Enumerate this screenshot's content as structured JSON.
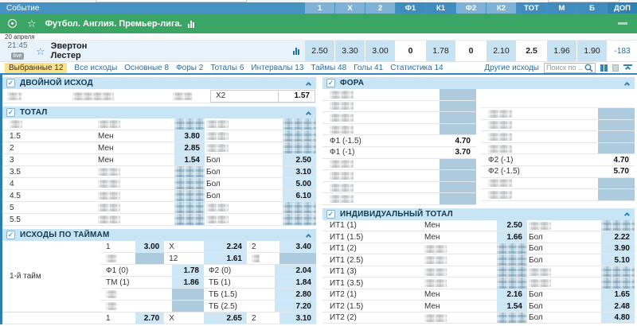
{
  "colors": {
    "header_blue": "#4592c3",
    "league_green": "#3aa565",
    "odds_cell_blue": "#cde7f6",
    "selected_tab_yellow": "#fbe189",
    "link_blue": "#1f6fa8"
  },
  "header": {
    "event_label": "Событие",
    "columns": [
      {
        "label": "1",
        "tone": "light"
      },
      {
        "label": "X",
        "tone": "light"
      },
      {
        "label": "2",
        "tone": "light"
      },
      {
        "label": "Ф1",
        "tone": "dark"
      },
      {
        "label": "К1",
        "tone": "dark"
      },
      {
        "label": "Ф2",
        "tone": "light"
      },
      {
        "label": "К2",
        "tone": "light"
      },
      {
        "label": "ТОТ",
        "tone": "dark"
      },
      {
        "label": "М",
        "tone": "dark"
      },
      {
        "label": "Б",
        "tone": "dark"
      },
      {
        "label": "ДОП",
        "tone": "darker"
      }
    ]
  },
  "league": {
    "title": "Футбол. Англия. Премьер-лига.",
    "sport_icon": "football-icon",
    "favorite_icon": "star-icon",
    "stats_icon": "bar-chart-icon",
    "collapse_icon": "minus-icon"
  },
  "date_label": "20 апреля",
  "match": {
    "time": "21:45",
    "live_badge": "live",
    "home": "Эвертон",
    "away": "Лестер",
    "odds": [
      {
        "col": "1",
        "value": "2.50",
        "style": "blue"
      },
      {
        "col": "X",
        "value": "3.30",
        "style": "blue"
      },
      {
        "col": "2",
        "value": "3.00",
        "style": "blue"
      },
      {
        "col": "Ф1",
        "value": "0",
        "style": "white"
      },
      {
        "col": "К1",
        "value": "1.78",
        "style": "blue"
      },
      {
        "col": "Ф2",
        "value": "0",
        "style": "white"
      },
      {
        "col": "К2",
        "value": "2.10",
        "style": "blue"
      },
      {
        "col": "ТОТ",
        "value": "2.5",
        "style": "white"
      },
      {
        "col": "М",
        "value": "1.96",
        "style": "blue"
      },
      {
        "col": "Б",
        "value": "1.90",
        "style": "blue"
      },
      {
        "col": "ДОП",
        "value": "-183",
        "style": "link"
      }
    ]
  },
  "tabs": {
    "items": [
      {
        "label": "Выбранные 12",
        "selected": true
      },
      {
        "label": "Все исходы",
        "selected": false
      },
      {
        "label": "Основные 8",
        "selected": false
      },
      {
        "label": "Форы 2",
        "selected": false
      },
      {
        "label": "Тоталы 6",
        "selected": false
      },
      {
        "label": "Интервалы 13",
        "selected": false
      },
      {
        "label": "Таймы 48",
        "selected": false
      },
      {
        "label": "Голы 41",
        "selected": false
      },
      {
        "label": "Статистика 14",
        "selected": false
      }
    ],
    "other_markets_label": "Другие исходы",
    "search_placeholder": "Поиск по ..."
  },
  "markets": {
    "left": [
      {
        "id": "double-chance",
        "type": "double",
        "title": "ДВОЙНОЙ ИСХОД",
        "row": {
          "label": "Х2",
          "odds": "1.57"
        }
      },
      {
        "id": "total",
        "type": "pairs",
        "title": "ТОТАЛ",
        "rows": [
          {
            "line": null,
            "sel1": null,
            "odd1": null,
            "sel2": null,
            "odd2": null
          },
          {
            "line": "1.5",
            "sel1": "Мен",
            "odd1": "3.80",
            "sel2": null,
            "odd2": null
          },
          {
            "line": "2",
            "sel1": "Мен",
            "odd1": "2.85",
            "sel2": null,
            "odd2": null
          },
          {
            "line": "3",
            "sel1": "Мен",
            "odd1": "1.54",
            "sel2": "Бол",
            "odd2": "2.50"
          },
          {
            "line": "3.5",
            "sel1": null,
            "odd1": null,
            "sel2": "Бол",
            "odd2": "3.10"
          },
          {
            "line": "4",
            "sel1": null,
            "odd1": null,
            "sel2": "Бол",
            "odd2": "5.00"
          },
          {
            "line": "4.5",
            "sel1": null,
            "odd1": null,
            "sel2": "Бол",
            "odd2": "6.10"
          },
          {
            "line": "5",
            "sel1": null,
            "odd1": null,
            "sel2": null,
            "odd2": null
          },
          {
            "line": "5.5",
            "sel1": null,
            "odd1": null,
            "sel2": null,
            "odd2": null
          }
        ]
      },
      {
        "id": "half-outcomes",
        "type": "halves",
        "title": "ИСХОДЫ ПО ТАЙМАМ",
        "group_label": "1-й тайм",
        "rows": [
          {
            "kind": "triple",
            "pairs": [
              [
                "1",
                "3.00"
              ],
              [
                "X",
                "2.24"
              ],
              [
                "2",
                "3.40"
              ]
            ]
          },
          {
            "kind": "triple",
            "pairs": [
              [
                null,
                null
              ],
              [
                "12",
                "1.61"
              ],
              [
                null,
                null
              ]
            ]
          },
          {
            "kind": "double",
            "pairs": [
              [
                "Ф1 (0)",
                "1.78"
              ],
              [
                "Ф2 (0)",
                "2.04"
              ]
            ]
          },
          {
            "kind": "double",
            "pairs": [
              [
                "ТМ (1)",
                "1.86"
              ],
              [
                "ТБ (1)",
                "1.84"
              ]
            ]
          },
          {
            "kind": "double",
            "pairs": [
              [
                null,
                null
              ],
              [
                "ТБ (1.5)",
                "2.80"
              ]
            ]
          },
          {
            "kind": "double",
            "pairs": [
              [
                null,
                null
              ],
              [
                "ТБ (2.5)",
                "7.20"
              ]
            ]
          }
        ],
        "next_group_row": {
          "kind": "triple",
          "pairs": [
            [
              "1",
              "2.70"
            ],
            [
              "X",
              "2.65"
            ],
            [
              "2",
              "3.10"
            ]
          ]
        }
      }
    ],
    "right": [
      {
        "id": "handicap",
        "type": "fora",
        "title": "ФОРА",
        "col1": [
          {
            "label": null,
            "odds": null
          },
          {
            "label": null,
            "odds": null
          },
          {
            "label": null,
            "odds": null
          },
          {
            "label": null,
            "odds": null
          },
          {
            "label": "Ф1 (-1.5)",
            "odds": "4.70"
          },
          {
            "label": "Ф1 (-1)",
            "odds": "3.70"
          },
          {
            "label": null,
            "odds": null
          },
          {
            "label": null,
            "odds": null
          },
          {
            "label": null,
            "odds": null
          },
          {
            "label": null,
            "odds": null
          }
        ],
        "col2": [
          {
            "empty": true
          },
          {
            "label": null,
            "odds": null
          },
          {
            "label": null,
            "odds": null
          },
          {
            "label": null,
            "odds": null
          },
          {
            "label": null,
            "odds": null
          },
          {
            "label": "Ф2 (-1)",
            "odds": "4.70"
          },
          {
            "label": "Ф2 (-1.5)",
            "odds": "5.70"
          },
          {
            "label": null,
            "odds": null
          },
          {
            "label": null,
            "odds": null
          }
        ]
      },
      {
        "id": "individual-total",
        "type": "pairs",
        "title": "ИНДИВИДУАЛЬНЫЙ ТОТАЛ",
        "rows": [
          {
            "line": "ИТ1 (1)",
            "sel1": "Мен",
            "odd1": "2.50",
            "sel2": null,
            "odd2": null
          },
          {
            "line": "ИТ1 (1.5)",
            "sel1": "Мен",
            "odd1": "1.66",
            "sel2": "Бол",
            "odd2": "2.22"
          },
          {
            "line": "ИТ1 (2)",
            "sel1": null,
            "odd1": null,
            "sel2": "Бол",
            "odd2": "3.90"
          },
          {
            "line": "ИТ1 (2.5)",
            "sel1": null,
            "odd1": null,
            "sel2": "Бол",
            "odd2": "5.10"
          },
          {
            "line": "ИТ1 (3)",
            "sel1": null,
            "odd1": null,
            "sel2": null,
            "odd2": null
          },
          {
            "line": "ИТ1 (3.5)",
            "sel1": null,
            "odd1": null,
            "sel2": null,
            "odd2": null
          },
          {
            "line": "ИТ2 (1)",
            "sel1": "Мен",
            "odd1": "2.16",
            "sel2": "Бол",
            "odd2": "1.65"
          },
          {
            "line": "ИТ2 (1.5)",
            "sel1": "Мен",
            "odd1": "1.54",
            "sel2": "Бол",
            "odd2": "2.48"
          },
          {
            "line": "ИТ2 (2)",
            "sel1": null,
            "odd1": null,
            "sel2": "Бол",
            "odd2": "4.80"
          }
        ]
      }
    ]
  }
}
